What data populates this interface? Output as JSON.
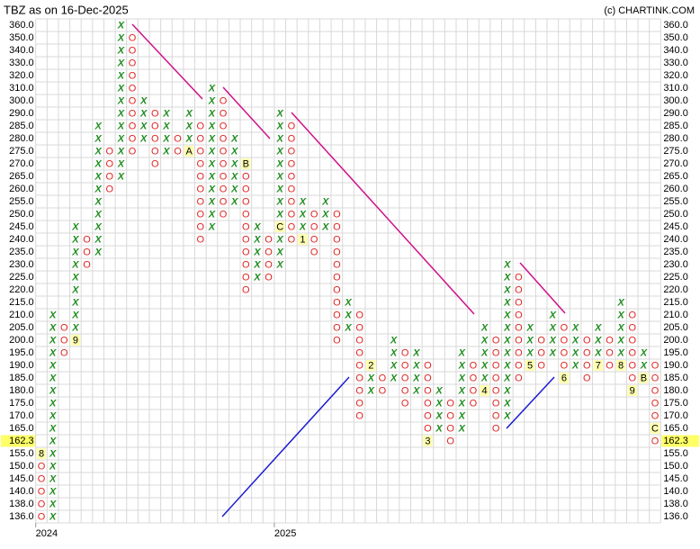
{
  "chart_data": {
    "type": "point_and_figure",
    "title": "TBZ as on 16-Dec-2025",
    "credit": "(c) CHARTINK.COM",
    "x_color": "#1e8c1e",
    "o_color": "#e02424",
    "grid": true,
    "levels": [
      360,
      350,
      340,
      330,
      320,
      310,
      300,
      290,
      285,
      280,
      275,
      270,
      265,
      260,
      255,
      250,
      245,
      240,
      235,
      230,
      225,
      220,
      215,
      210,
      205,
      200,
      195,
      190,
      185,
      180,
      175,
      170,
      165,
      160,
      155,
      150,
      145,
      140,
      138,
      136
    ],
    "yticks": [
      {
        "value": 360,
        "label": "360.0"
      },
      {
        "value": 350,
        "label": "350.0"
      },
      {
        "value": 340,
        "label": "340.0"
      },
      {
        "value": 330,
        "label": "330.0"
      },
      {
        "value": 320,
        "label": "320.0"
      },
      {
        "value": 310,
        "label": "310.0"
      },
      {
        "value": 300,
        "label": "300.0"
      },
      {
        "value": 290,
        "label": "290.0"
      },
      {
        "value": 285,
        "label": "285.0"
      },
      {
        "value": 280,
        "label": "280.0"
      },
      {
        "value": 275,
        "label": "275.0"
      },
      {
        "value": 270,
        "label": "270.0"
      },
      {
        "value": 265,
        "label": "265.0"
      },
      {
        "value": 260,
        "label": "260.0"
      },
      {
        "value": 255,
        "label": "255.0"
      },
      {
        "value": 250,
        "label": "250.0"
      },
      {
        "value": 245,
        "label": "245.0"
      },
      {
        "value": 240,
        "label": "240.0"
      },
      {
        "value": 235,
        "label": "235.0"
      },
      {
        "value": 230,
        "label": "230.0"
      },
      {
        "value": 225,
        "label": "225.0"
      },
      {
        "value": 220,
        "label": "220.0"
      },
      {
        "value": 215,
        "label": "215.0"
      },
      {
        "value": 210,
        "label": "210.0"
      },
      {
        "value": 205,
        "label": "205.0"
      },
      {
        "value": 200,
        "label": "200.0"
      },
      {
        "value": 195,
        "label": "195.0"
      },
      {
        "value": 190,
        "label": "190.0"
      },
      {
        "value": 185,
        "label": "185.0"
      },
      {
        "value": 180,
        "label": "180.0"
      },
      {
        "value": 175,
        "label": "175.0"
      },
      {
        "value": 170,
        "label": "170.0"
      },
      {
        "value": 165,
        "label": "165.0"
      },
      {
        "value": 155,
        "label": "155.0"
      },
      {
        "value": 150,
        "label": "150.0"
      },
      {
        "value": 145,
        "label": "145.0"
      },
      {
        "value": 140,
        "label": "140.0"
      },
      {
        "value": 138,
        "label": "138.0"
      },
      {
        "value": 136,
        "label": "136.0"
      }
    ],
    "last_price": 162.3,
    "categories": [
      "2024",
      null,
      null,
      null,
      null,
      null,
      null,
      null,
      null,
      null,
      null,
      null,
      null,
      null,
      null,
      null,
      null,
      null,
      null,
      null,
      null,
      "2025",
      null,
      null,
      null,
      null,
      null,
      null,
      null,
      null,
      null,
      null,
      null,
      null,
      null,
      null,
      null,
      null,
      null,
      null,
      null,
      null,
      null,
      null,
      null,
      null,
      null,
      null,
      null,
      null,
      null,
      null,
      null,
      null,
      null
    ],
    "columns": [
      {
        "type": "O",
        "high": 155,
        "low": 136,
        "markers": [
          {
            "level": 155,
            "label": "8"
          }
        ]
      },
      {
        "type": "X",
        "high": 210,
        "low": 136
      },
      {
        "type": "O",
        "high": 205,
        "low": 195
      },
      {
        "type": "X",
        "high": 245,
        "low": 200,
        "markers": [
          {
            "level": 200,
            "label": "9"
          }
        ]
      },
      {
        "type": "O",
        "high": 240,
        "low": 230
      },
      {
        "type": "X",
        "high": 285,
        "low": 235
      },
      {
        "type": "O",
        "high": 275,
        "low": 260
      },
      {
        "type": "X",
        "high": 360,
        "low": 265
      },
      {
        "type": "O",
        "high": 350,
        "low": 275
      },
      {
        "type": "X",
        "high": 300,
        "low": 280
      },
      {
        "type": "O",
        "high": 290,
        "low": 270
      },
      {
        "type": "X",
        "high": 290,
        "low": 275
      },
      {
        "type": "O",
        "high": 280,
        "low": 275
      },
      {
        "type": "X",
        "high": 290,
        "low": 275,
        "markers": [
          {
            "level": 275,
            "label": "A"
          }
        ]
      },
      {
        "type": "O",
        "high": 285,
        "low": 240
      },
      {
        "type": "X",
        "high": 310,
        "low": 245
      },
      {
        "type": "O",
        "high": 300,
        "low": 250
      },
      {
        "type": "X",
        "high": 280,
        "low": 255
      },
      {
        "type": "O",
        "high": 270,
        "low": 220,
        "markers": [
          {
            "level": 270,
            "label": "B"
          }
        ]
      },
      {
        "type": "X",
        "high": 245,
        "low": 225
      },
      {
        "type": "O",
        "high": 240,
        "low": 225
      },
      {
        "type": "X",
        "high": 290,
        "low": 230,
        "markers": [
          {
            "level": 245,
            "label": "C"
          }
        ]
      },
      {
        "type": "O",
        "high": 285,
        "low": 240
      },
      {
        "type": "X",
        "high": 255,
        "low": 240,
        "markers": [
          {
            "level": 240,
            "label": "1"
          }
        ]
      },
      {
        "type": "O",
        "high": 250,
        "low": 235
      },
      {
        "type": "X",
        "high": 255,
        "low": 245
      },
      {
        "type": "O",
        "high": 250,
        "low": 200
      },
      {
        "type": "X",
        "high": 215,
        "low": 205
      },
      {
        "type": "O",
        "high": 210,
        "low": 170
      },
      {
        "type": "X",
        "high": 190,
        "low": 180,
        "markers": [
          {
            "level": 190,
            "label": "2"
          }
        ]
      },
      {
        "type": "O",
        "high": 185,
        "low": 180
      },
      {
        "type": "X",
        "high": 200,
        "low": 185
      },
      {
        "type": "O",
        "high": 195,
        "low": 175
      },
      {
        "type": "X",
        "high": 195,
        "low": 180
      },
      {
        "type": "O",
        "high": 190,
        "low": 160,
        "markers": [
          {
            "level": 160,
            "label": "3"
          }
        ]
      },
      {
        "type": "X",
        "high": 180,
        "low": 165
      },
      {
        "type": "O",
        "high": 175,
        "low": 160
      },
      {
        "type": "X",
        "high": 195,
        "low": 165
      },
      {
        "type": "O",
        "high": 190,
        "low": 175
      },
      {
        "type": "X",
        "high": 205,
        "low": 180,
        "markers": [
          {
            "level": 180,
            "label": "4"
          }
        ]
      },
      {
        "type": "O",
        "high": 200,
        "low": 165
      },
      {
        "type": "X",
        "high": 230,
        "low": 170
      },
      {
        "type": "O",
        "high": 225,
        "low": 185
      },
      {
        "type": "X",
        "high": 205,
        "low": 190,
        "markers": [
          {
            "level": 190,
            "label": "5"
          }
        ]
      },
      {
        "type": "O",
        "high": 200,
        "low": 190
      },
      {
        "type": "X",
        "high": 210,
        "low": 195
      },
      {
        "type": "O",
        "high": 205,
        "low": 185,
        "markers": [
          {
            "level": 185,
            "label": "6"
          }
        ]
      },
      {
        "type": "X",
        "high": 205,
        "low": 190
      },
      {
        "type": "O",
        "high": 200,
        "low": 185
      },
      {
        "type": "X",
        "high": 205,
        "low": 190,
        "markers": [
          {
            "level": 190,
            "label": "7"
          }
        ]
      },
      {
        "type": "O",
        "high": 200,
        "low": 190
      },
      {
        "type": "X",
        "high": 215,
        "low": 190,
        "markers": [
          {
            "level": 190,
            "label": "8"
          }
        ]
      },
      {
        "type": "O",
        "high": 210,
        "low": 180,
        "markers": [
          {
            "level": 180,
            "label": "9"
          }
        ]
      },
      {
        "type": "X",
        "high": 195,
        "low": 185,
        "markers": [
          {
            "level": 185,
            "label": "B"
          }
        ]
      },
      {
        "type": "O",
        "high": 190,
        "low": 160,
        "markers": [
          {
            "level": 165,
            "label": "C"
          }
        ]
      }
    ]
  }
}
